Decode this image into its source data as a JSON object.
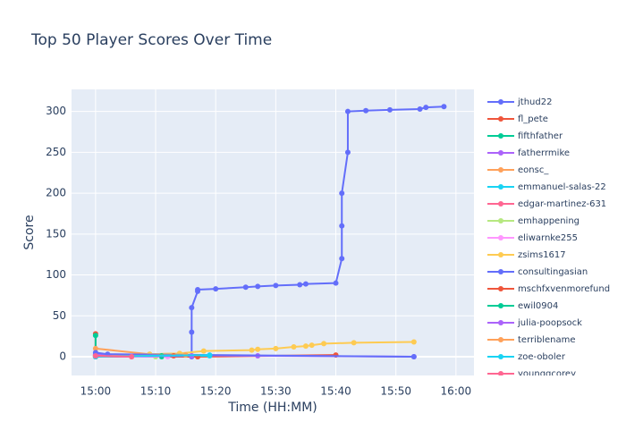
{
  "chart_data": {
    "type": "line",
    "title": "Top 50 Player Scores Over Time",
    "x_label": "Time (HH:MM)",
    "y_label": "Score",
    "xlim": [
      "14:56",
      "16:03"
    ],
    "xticks": [
      "15:00",
      "15:10",
      "15:20",
      "15:30",
      "15:40",
      "15:50",
      "16:00"
    ],
    "ylim": [
      -23,
      327
    ],
    "yticks": [
      0,
      50,
      100,
      150,
      200,
      250,
      300
    ],
    "grid": true,
    "series": [
      {
        "name": "jthud22",
        "color": "#636efa",
        "x": [
          "15:16",
          "15:16",
          "15:16",
          "15:17",
          "15:17",
          "15:20",
          "15:25",
          "15:27",
          "15:30",
          "15:34",
          "15:35",
          "15:40",
          "15:41",
          "15:41",
          "15:41",
          "15:42",
          "15:42",
          "15:45",
          "15:49",
          "15:54",
          "15:55",
          "15:58"
        ],
        "values": [
          0,
          30,
          60,
          80,
          82,
          83,
          85,
          86,
          87,
          88,
          89,
          90,
          120,
          160,
          200,
          250,
          300,
          301,
          302,
          303,
          305,
          306
        ]
      },
      {
        "name": "fl_pete",
        "color": "#EF553B",
        "x": [
          "15:00",
          "15:00",
          "15:06",
          "15:17",
          "15:40"
        ],
        "values": [
          28,
          2,
          0,
          0,
          2
        ]
      },
      {
        "name": "fifthfather",
        "color": "#00cc96",
        "x": [
          "15:00",
          "15:00",
          "15:11"
        ],
        "values": [
          26,
          0,
          0
        ]
      },
      {
        "name": "fatherrmike",
        "color": "#ab63fa",
        "x": [
          "15:00",
          "15:27",
          "15:53"
        ],
        "values": [
          3,
          1,
          0
        ]
      },
      {
        "name": "eonsc_",
        "color": "#FFA15A",
        "x": [
          "15:00",
          "15:09",
          "15:14"
        ],
        "values": [
          10,
          3,
          4
        ]
      },
      {
        "name": "emmanuel-salas-22",
        "color": "#19d3f3",
        "x": [
          "15:00",
          "15:19"
        ],
        "values": [
          0,
          1
        ]
      },
      {
        "name": "edgar-martinez-631",
        "color": "#FF6692",
        "x": [
          "15:00",
          "15:16"
        ],
        "values": [
          1,
          1
        ]
      },
      {
        "name": "emhappening",
        "color": "#B6E880",
        "x": [
          "15:00",
          "15:10"
        ],
        "values": [
          0,
          0
        ]
      },
      {
        "name": "eliwarnke255",
        "color": "#FF97FF",
        "x": [
          "15:00",
          "15:12"
        ],
        "values": [
          0,
          0
        ]
      },
      {
        "name": "zsims1617",
        "color": "#FECB52",
        "x": [
          "15:00",
          "15:09",
          "15:14",
          "15:18",
          "15:26",
          "15:27",
          "15:30",
          "15:33",
          "15:35",
          "15:36",
          "15:38",
          "15:43",
          "15:53"
        ],
        "values": [
          0,
          3,
          4,
          7,
          8,
          9,
          10,
          12,
          13,
          14,
          16,
          17,
          18
        ]
      },
      {
        "name": "consultingasian",
        "color": "#636efa",
        "x": [
          "15:00",
          "15:02",
          "15:53"
        ],
        "values": [
          5,
          3,
          0
        ]
      },
      {
        "name": "mschfxvenmorefund",
        "color": "#EF553B",
        "x": [
          "15:00",
          "15:13",
          "15:17"
        ],
        "values": [
          0,
          1,
          0
        ]
      },
      {
        "name": "ewil0904",
        "color": "#00cc96",
        "x": [
          "15:00",
          "15:11"
        ],
        "values": [
          0,
          1
        ]
      },
      {
        "name": "julia-poopsock",
        "color": "#ab63fa",
        "x": [
          "15:00",
          "15:16"
        ],
        "values": [
          0,
          1
        ]
      },
      {
        "name": "terriblename",
        "color": "#FFA15A",
        "x": [
          "15:00",
          "15:15"
        ],
        "values": [
          0,
          2
        ]
      },
      {
        "name": "zoe-oboler",
        "color": "#19d3f3",
        "x": [
          "15:00",
          "15:19"
        ],
        "values": [
          0,
          2
        ]
      },
      {
        "name": "youngqcorey",
        "color": "#FF6692",
        "x": [
          "15:00",
          "15:06"
        ],
        "values": [
          1,
          0
        ]
      }
    ]
  }
}
